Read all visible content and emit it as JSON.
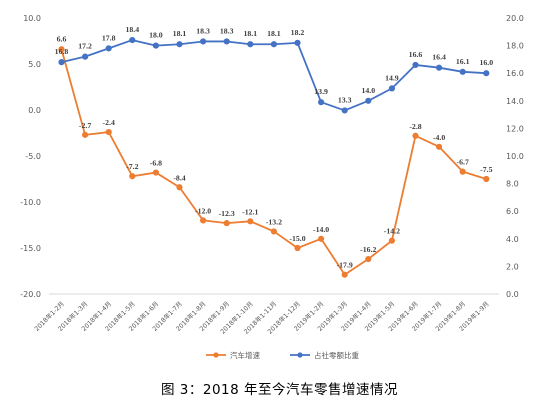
{
  "caption": "图 3：2018 年至今汽车零售增速情况",
  "chart_data": {
    "type": "line",
    "categories": [
      "2018年1-2月",
      "2018年1-3月",
      "2018年1-4月",
      "2018年1-5月",
      "2018年1-6月",
      "2018年1-7月",
      "2018年1-8月",
      "2018年1-9月",
      "2018年1-10月",
      "2018年1-11月",
      "2018年1-12月",
      "2019年1-2月",
      "2019年1-3月",
      "2019年1-4月",
      "2019年1-5月",
      "2019年1-6月",
      "2019年1-7月",
      "2019年1-8月",
      "2019年1-9月"
    ],
    "left_axis": {
      "ylim": [
        -20,
        10
      ],
      "ticks": [
        "10.0",
        "5.0",
        "0.0",
        "-5.0",
        "-10.0",
        "-15.0",
        "-20.0"
      ]
    },
    "right_axis": {
      "ylim": [
        0,
        20
      ],
      "ticks": [
        "20.0",
        "18.0",
        "16.0",
        "14.0",
        "12.0",
        "10.0",
        "8.0",
        "6.0",
        "4.0",
        "2.0",
        "0.0"
      ]
    },
    "grid": false,
    "legend_position": "bottom",
    "series": [
      {
        "name": "汽车增速",
        "axis": "left",
        "color": "#ED7D31",
        "values": [
          6.6,
          -2.7,
          -2.4,
          -7.2,
          -6.8,
          -8.4,
          -12.0,
          -12.3,
          -12.1,
          -13.2,
          -15.0,
          -14.0,
          -17.9,
          -16.2,
          -14.2,
          -2.8,
          -4.0,
          -6.7,
          -7.5
        ],
        "labels": [
          "6.6",
          "-2.7",
          "-2.4",
          "-7.2",
          "-6.8",
          "-8.4",
          "-12.0",
          "-12.3",
          "-12.1",
          "-13.2",
          "-15.0",
          "-14.0",
          "-17.9",
          "-16.2",
          "-14.2",
          "-2.8",
          "-4.0",
          "-6.7",
          "-7.5"
        ]
      },
      {
        "name": "占社零额比重",
        "axis": "right",
        "color": "#4472C4",
        "values": [
          16.8,
          17.2,
          17.8,
          18.4,
          18.0,
          18.1,
          18.3,
          18.3,
          18.1,
          18.1,
          18.2,
          13.9,
          13.3,
          14.0,
          14.9,
          16.6,
          16.4,
          16.1,
          16.0
        ],
        "labels": [
          "16.8",
          "17.2",
          "17.8",
          "18.4",
          "18.0",
          "18.1",
          "18.3",
          "18.3",
          "18.1",
          "18.1",
          "18.2",
          "13.9",
          "13.3",
          "14.0",
          "14.9",
          "16.6",
          "16.4",
          "16.1",
          "16.0"
        ]
      }
    ]
  }
}
